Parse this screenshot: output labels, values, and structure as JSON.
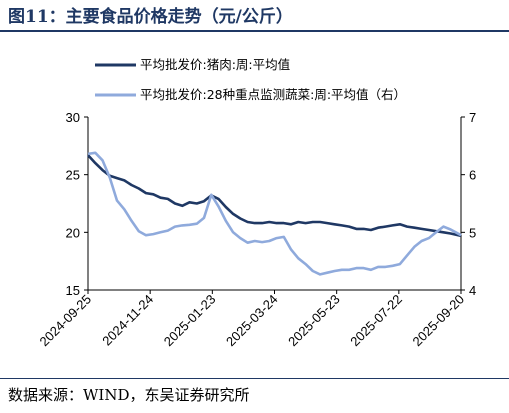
{
  "header": {
    "title": "图11：主要食品价格走势（元/公斤）"
  },
  "footer": {
    "source": "数据来源：WIND，东吴证券研究所"
  },
  "colors": {
    "series1": "#1f3864",
    "series2": "#8faadc",
    "axis": "#000000"
  },
  "chart_data": {
    "type": "line",
    "legend_position": "top",
    "grid": false,
    "y_left": {
      "lim": [
        15,
        30
      ],
      "ticks": [
        "15",
        "20",
        "25",
        "30"
      ]
    },
    "y_right": {
      "lim": [
        4,
        7
      ],
      "ticks": [
        "4",
        "5",
        "6",
        "7"
      ]
    },
    "x_ticks": [
      "2024-09-25",
      "2024-11-24",
      "2025-01-23",
      "2025-03-24",
      "2025-05-23",
      "2025-07-22",
      "2025-09-20"
    ],
    "x_range": [
      "2024-09-25",
      "2025-09-20"
    ],
    "series": [
      {
        "name": "平均批发价:猪肉:周:平均值",
        "axis": "left",
        "points": [
          [
            "2024-09-25",
            26.7
          ],
          [
            "2024-10-02",
            26.0
          ],
          [
            "2024-10-09",
            25.4
          ],
          [
            "2024-10-16",
            24.9
          ],
          [
            "2024-10-23",
            24.7
          ],
          [
            "2024-10-30",
            24.5
          ],
          [
            "2024-11-06",
            24.1
          ],
          [
            "2024-11-13",
            23.8
          ],
          [
            "2024-11-20",
            23.4
          ],
          [
            "2024-11-27",
            23.3
          ],
          [
            "2024-12-04",
            23.0
          ],
          [
            "2024-12-11",
            22.9
          ],
          [
            "2024-12-18",
            22.5
          ],
          [
            "2024-12-25",
            22.3
          ],
          [
            "2025-01-01",
            22.6
          ],
          [
            "2025-01-08",
            22.5
          ],
          [
            "2025-01-15",
            22.7
          ],
          [
            "2025-01-22",
            23.2
          ],
          [
            "2025-01-29",
            22.9
          ],
          [
            "2025-02-05",
            22.2
          ],
          [
            "2025-02-12",
            21.6
          ],
          [
            "2025-02-19",
            21.2
          ],
          [
            "2025-02-26",
            20.9
          ],
          [
            "2025-03-05",
            20.8
          ],
          [
            "2025-03-12",
            20.8
          ],
          [
            "2025-03-19",
            20.9
          ],
          [
            "2025-03-26",
            20.8
          ],
          [
            "2025-04-02",
            20.8
          ],
          [
            "2025-04-09",
            20.7
          ],
          [
            "2025-04-16",
            20.9
          ],
          [
            "2025-04-23",
            20.8
          ],
          [
            "2025-04-30",
            20.9
          ],
          [
            "2025-05-07",
            20.9
          ],
          [
            "2025-05-14",
            20.8
          ],
          [
            "2025-05-21",
            20.7
          ],
          [
            "2025-05-28",
            20.6
          ],
          [
            "2025-06-04",
            20.5
          ],
          [
            "2025-06-11",
            20.3
          ],
          [
            "2025-06-18",
            20.3
          ],
          [
            "2025-06-25",
            20.2
          ],
          [
            "2025-07-02",
            20.4
          ],
          [
            "2025-07-09",
            20.5
          ],
          [
            "2025-07-16",
            20.6
          ],
          [
            "2025-07-23",
            20.7
          ],
          [
            "2025-07-30",
            20.5
          ],
          [
            "2025-08-06",
            20.4
          ],
          [
            "2025-08-13",
            20.3
          ],
          [
            "2025-08-20",
            20.2
          ],
          [
            "2025-08-27",
            20.1
          ],
          [
            "2025-09-03",
            20.0
          ],
          [
            "2025-09-10",
            19.9
          ],
          [
            "2025-09-20",
            19.7
          ]
        ]
      },
      {
        "name": "平均批发价:28种重点监测蔬菜:周:平均值（右）",
        "axis": "right",
        "points": [
          [
            "2024-09-25",
            6.36
          ],
          [
            "2024-10-02",
            6.38
          ],
          [
            "2024-10-09",
            6.25
          ],
          [
            "2024-10-16",
            5.95
          ],
          [
            "2024-10-23",
            5.55
          ],
          [
            "2024-10-30",
            5.4
          ],
          [
            "2024-11-06",
            5.2
          ],
          [
            "2024-11-13",
            5.02
          ],
          [
            "2024-11-20",
            4.95
          ],
          [
            "2024-11-27",
            4.97
          ],
          [
            "2024-12-04",
            5.0
          ],
          [
            "2024-12-11",
            5.03
          ],
          [
            "2024-12-18",
            5.1
          ],
          [
            "2024-12-25",
            5.12
          ],
          [
            "2025-01-01",
            5.13
          ],
          [
            "2025-01-08",
            5.15
          ],
          [
            "2025-01-15",
            5.25
          ],
          [
            "2025-01-22",
            5.65
          ],
          [
            "2025-01-29",
            5.45
          ],
          [
            "2025-02-05",
            5.2
          ],
          [
            "2025-02-12",
            5.0
          ],
          [
            "2025-02-19",
            4.9
          ],
          [
            "2025-02-26",
            4.82
          ],
          [
            "2025-03-05",
            4.85
          ],
          [
            "2025-03-12",
            4.83
          ],
          [
            "2025-03-19",
            4.85
          ],
          [
            "2025-03-26",
            4.9
          ],
          [
            "2025-04-02",
            4.92
          ],
          [
            "2025-04-09",
            4.7
          ],
          [
            "2025-04-16",
            4.55
          ],
          [
            "2025-04-23",
            4.45
          ],
          [
            "2025-04-30",
            4.33
          ],
          [
            "2025-05-07",
            4.27
          ],
          [
            "2025-05-14",
            4.3
          ],
          [
            "2025-05-21",
            4.33
          ],
          [
            "2025-05-28",
            4.35
          ],
          [
            "2025-06-04",
            4.35
          ],
          [
            "2025-06-11",
            4.38
          ],
          [
            "2025-06-18",
            4.38
          ],
          [
            "2025-06-25",
            4.35
          ],
          [
            "2025-07-02",
            4.4
          ],
          [
            "2025-07-09",
            4.4
          ],
          [
            "2025-07-16",
            4.42
          ],
          [
            "2025-07-23",
            4.45
          ],
          [
            "2025-07-30",
            4.6
          ],
          [
            "2025-08-06",
            4.75
          ],
          [
            "2025-08-13",
            4.85
          ],
          [
            "2025-08-20",
            4.9
          ],
          [
            "2025-08-27",
            5.0
          ],
          [
            "2025-09-03",
            5.1
          ],
          [
            "2025-09-10",
            5.05
          ],
          [
            "2025-09-20",
            4.95
          ]
        ]
      }
    ]
  }
}
